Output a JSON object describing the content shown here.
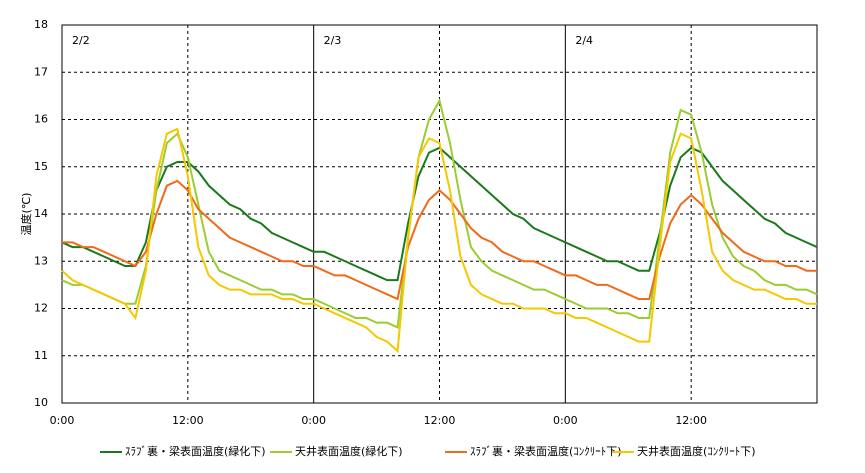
{
  "chart_data": {
    "type": "line",
    "y_label": "温度(℃)",
    "annotations": [
      {
        "text": "2/2",
        "x": 0
      },
      {
        "text": "2/3",
        "x": 24
      },
      {
        "text": "2/4",
        "x": 48
      }
    ],
    "x": [
      0,
      1,
      2,
      3,
      4,
      5,
      6,
      7,
      8,
      9,
      10,
      11,
      12,
      13,
      14,
      15,
      16,
      17,
      18,
      19,
      20,
      21,
      22,
      23,
      24,
      25,
      26,
      27,
      28,
      29,
      30,
      31,
      32,
      33,
      34,
      35,
      36,
      37,
      38,
      39,
      40,
      41,
      42,
      43,
      44,
      45,
      46,
      47,
      48,
      49,
      50,
      51,
      52,
      53,
      54,
      55,
      56,
      57,
      58,
      59,
      60,
      61,
      62,
      63,
      64,
      65,
      66,
      67,
      68,
      69,
      70,
      71,
      72
    ],
    "xlim": [
      0,
      72
    ],
    "xticks": [
      {
        "value": 0,
        "label": "0:00"
      },
      {
        "value": 12,
        "label": "12:00"
      },
      {
        "value": 24,
        "label": "0:00"
      },
      {
        "value": 36,
        "label": "12:00"
      },
      {
        "value": 48,
        "label": "0:00"
      },
      {
        "value": 60,
        "label": "12:00"
      }
    ],
    "ylim": [
      10,
      18
    ],
    "yticks": [
      10,
      11,
      12,
      13,
      14,
      15,
      16,
      17,
      18
    ],
    "grid": true,
    "legend": "bottom",
    "series": [
      {
        "name": "ｽﾗﾌﾞ裏・梁表面温度(緑化下)",
        "color": "#1a7a1a",
        "values": [
          13.4,
          13.3,
          13.3,
          13.2,
          13.1,
          13.0,
          12.9,
          12.9,
          13.4,
          14.5,
          15.0,
          15.1,
          15.1,
          14.9,
          14.6,
          14.4,
          14.2,
          14.1,
          13.9,
          13.8,
          13.6,
          13.5,
          13.4,
          13.3,
          13.2,
          13.2,
          13.1,
          13.0,
          12.9,
          12.8,
          12.7,
          12.6,
          12.6,
          13.8,
          14.8,
          15.3,
          15.4,
          15.2,
          15.0,
          14.8,
          14.6,
          14.4,
          14.2,
          14.0,
          13.9,
          13.7,
          13.6,
          13.5,
          13.4,
          13.3,
          13.2,
          13.1,
          13.0,
          13.0,
          12.9,
          12.8,
          12.8,
          13.6,
          14.6,
          15.2,
          15.4,
          15.3,
          15.0,
          14.7,
          14.5,
          14.3,
          14.1,
          13.9,
          13.8,
          13.6,
          13.5,
          13.4,
          13.3
        ]
      },
      {
        "name": "天井表面温度(緑化下)",
        "color": "#9acd32",
        "values": [
          12.6,
          12.5,
          12.5,
          12.4,
          12.3,
          12.2,
          12.1,
          12.1,
          12.9,
          14.5,
          15.5,
          15.7,
          15.2,
          14.2,
          13.2,
          12.8,
          12.7,
          12.6,
          12.5,
          12.4,
          12.4,
          12.3,
          12.3,
          12.2,
          12.2,
          12.1,
          12.0,
          11.9,
          11.8,
          11.8,
          11.7,
          11.7,
          11.6,
          13.5,
          15.2,
          16.0,
          16.4,
          15.5,
          14.3,
          13.3,
          13.0,
          12.8,
          12.7,
          12.6,
          12.5,
          12.4,
          12.4,
          12.3,
          12.2,
          12.1,
          12.0,
          12.0,
          12.0,
          11.9,
          11.9,
          11.8,
          11.8,
          13.5,
          15.3,
          16.2,
          16.1,
          15.3,
          14.2,
          13.5,
          13.1,
          12.9,
          12.8,
          12.6,
          12.5,
          12.5,
          12.4,
          12.4,
          12.3
        ]
      },
      {
        "name": "ｽﾗﾌﾞ裏・梁表面温度(ｺﾝｸﾘｰﾄ下)",
        "color": "#f06a1a",
        "values": [
          13.4,
          13.4,
          13.3,
          13.3,
          13.2,
          13.1,
          13.0,
          12.9,
          13.2,
          14.0,
          14.6,
          14.7,
          14.5,
          14.1,
          13.9,
          13.7,
          13.5,
          13.4,
          13.3,
          13.2,
          13.1,
          13.0,
          13.0,
          12.9,
          12.9,
          12.8,
          12.7,
          12.7,
          12.6,
          12.5,
          12.4,
          12.3,
          12.2,
          13.3,
          13.9,
          14.3,
          14.5,
          14.3,
          14.0,
          13.7,
          13.5,
          13.4,
          13.2,
          13.1,
          13.0,
          13.0,
          12.9,
          12.8,
          12.7,
          12.7,
          12.6,
          12.5,
          12.5,
          12.4,
          12.3,
          12.2,
          12.2,
          13.1,
          13.8,
          14.2,
          14.4,
          14.2,
          13.9,
          13.6,
          13.4,
          13.2,
          13.1,
          13.0,
          13.0,
          12.9,
          12.9,
          12.8,
          12.8
        ]
      },
      {
        "name": "天井表面温度(ｺﾝｸﾘｰﾄ下)",
        "color": "#f5c800",
        "values": [
          12.8,
          12.6,
          12.5,
          12.4,
          12.3,
          12.2,
          12.1,
          11.8,
          12.8,
          14.8,
          15.7,
          15.8,
          14.8,
          13.3,
          12.7,
          12.5,
          12.4,
          12.4,
          12.3,
          12.3,
          12.3,
          12.2,
          12.2,
          12.1,
          12.1,
          12.0,
          11.9,
          11.8,
          11.7,
          11.6,
          11.4,
          11.3,
          11.1,
          13.5,
          15.2,
          15.6,
          15.5,
          14.5,
          13.1,
          12.5,
          12.3,
          12.2,
          12.1,
          12.1,
          12.0,
          12.0,
          12.0,
          11.9,
          11.9,
          11.8,
          11.8,
          11.7,
          11.6,
          11.5,
          11.4,
          11.3,
          11.3,
          13.3,
          15.1,
          15.7,
          15.6,
          14.5,
          13.2,
          12.8,
          12.6,
          12.5,
          12.4,
          12.4,
          12.3,
          12.2,
          12.2,
          12.1,
          12.1
        ]
      }
    ]
  }
}
